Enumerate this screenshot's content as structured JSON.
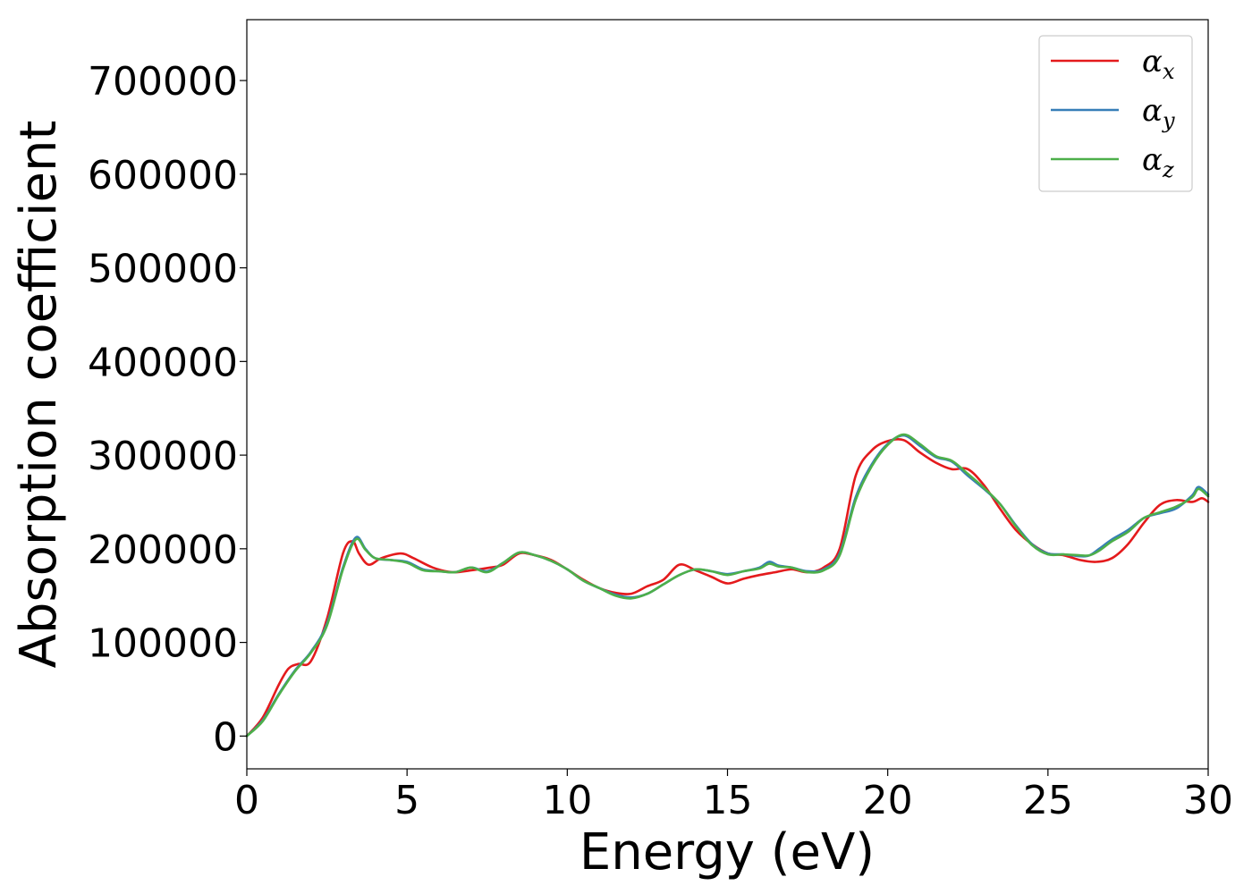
{
  "chart_data": {
    "type": "line",
    "title": "",
    "xlabel": "Energy (eV)",
    "ylabel": "Absorption coefficient",
    "xlim": [
      0,
      30
    ],
    "ylim": [
      -35000,
      765000
    ],
    "xticks": [
      0,
      5,
      10,
      15,
      20,
      25,
      30
    ],
    "yticks": [
      0,
      100000,
      200000,
      300000,
      400000,
      500000,
      600000,
      700000
    ],
    "grid": false,
    "legend_position": "top-right",
    "series": [
      {
        "name": "α",
        "name_sub": "x",
        "color": "#e41a1c",
        "x": [
          0,
          0.5,
          1.0,
          1.3,
          1.6,
          2.0,
          2.5,
          3.0,
          3.3,
          3.5,
          3.8,
          4.2,
          4.8,
          5.2,
          5.8,
          6.4,
          7.0,
          7.6,
          8.0,
          8.5,
          9.0,
          9.5,
          10.0,
          10.5,
          11.0,
          11.5,
          12.0,
          12.5,
          13.0,
          13.5,
          14.0,
          14.5,
          15.0,
          15.5,
          16.0,
          16.5,
          17.0,
          17.5,
          18.0,
          18.5,
          19.0,
          19.5,
          20.0,
          20.5,
          21.0,
          21.5,
          22.0,
          22.5,
          23.0,
          23.5,
          24.0,
          24.5,
          25.0,
          25.5,
          26.0,
          26.5,
          27.0,
          27.5,
          28.0,
          28.5,
          29.0,
          29.5,
          29.8,
          30.0
        ],
        "values": [
          0,
          20000,
          55000,
          72000,
          77000,
          80000,
          125000,
          195000,
          208000,
          195000,
          183000,
          190000,
          195000,
          190000,
          180000,
          175000,
          177000,
          180000,
          183000,
          195000,
          193000,
          188000,
          178000,
          167000,
          158000,
          153000,
          152000,
          160000,
          167000,
          183000,
          177000,
          170000,
          163000,
          168000,
          172000,
          175000,
          178000,
          175000,
          180000,
          200000,
          278000,
          305000,
          315000,
          316000,
          303000,
          292000,
          285000,
          285000,
          268000,
          243000,
          220000,
          205000,
          195000,
          193000,
          188000,
          186000,
          190000,
          205000,
          228000,
          247000,
          252000,
          250000,
          254000,
          250000
        ]
      },
      {
        "name": "α",
        "name_sub": "y",
        "color": "#377eb8",
        "x": [
          0,
          0.5,
          1.0,
          1.5,
          2.0,
          2.5,
          3.0,
          3.4,
          3.7,
          4.0,
          4.5,
          5.0,
          5.5,
          6.0,
          6.5,
          7.0,
          7.5,
          8.0,
          8.5,
          9.0,
          9.5,
          10.0,
          10.5,
          11.0,
          11.5,
          12.0,
          12.5,
          13.0,
          13.5,
          14.0,
          14.5,
          15.0,
          15.5,
          16.0,
          16.3,
          16.6,
          17.0,
          17.5,
          18.0,
          18.5,
          19.0,
          19.5,
          20.0,
          20.5,
          21.0,
          21.5,
          22.0,
          22.5,
          23.0,
          23.5,
          24.0,
          24.5,
          25.0,
          25.5,
          26.0,
          26.3,
          26.6,
          27.0,
          27.5,
          28.0,
          28.5,
          29.0,
          29.5,
          29.7,
          30.0
        ],
        "values": [
          0,
          17000,
          45000,
          70000,
          90000,
          120000,
          180000,
          212000,
          200000,
          190000,
          188000,
          186000,
          178000,
          176000,
          175000,
          180000,
          176000,
          185000,
          196000,
          193000,
          187000,
          178000,
          166000,
          158000,
          151000,
          148000,
          152000,
          162000,
          172000,
          178000,
          176000,
          173000,
          176000,
          180000,
          186000,
          182000,
          180000,
          176000,
          178000,
          195000,
          255000,
          290000,
          312000,
          321000,
          310000,
          298000,
          293000,
          278000,
          264000,
          248000,
          225000,
          205000,
          195000,
          194000,
          192000,
          193000,
          200000,
          210000,
          220000,
          233000,
          238000,
          243000,
          257000,
          266000,
          258000
        ]
      },
      {
        "name": "α",
        "name_sub": "z",
        "color": "#4daf4a",
        "x": [
          0,
          0.5,
          1.0,
          1.5,
          2.0,
          2.5,
          3.0,
          3.4,
          3.7,
          4.0,
          4.5,
          5.0,
          5.5,
          6.0,
          6.5,
          7.0,
          7.5,
          8.0,
          8.5,
          9.0,
          9.5,
          10.0,
          10.5,
          11.0,
          11.5,
          12.0,
          12.5,
          13.0,
          13.5,
          14.0,
          14.5,
          15.0,
          15.5,
          16.0,
          16.3,
          16.6,
          17.0,
          17.5,
          18.0,
          18.5,
          19.0,
          19.5,
          20.0,
          20.5,
          21.0,
          21.5,
          22.0,
          22.5,
          23.0,
          23.5,
          24.0,
          24.5,
          25.0,
          25.5,
          26.0,
          26.3,
          26.6,
          27.0,
          27.5,
          28.0,
          28.5,
          29.0,
          29.5,
          29.7,
          30.0
        ],
        "values": [
          0,
          16000,
          44000,
          69000,
          89000,
          118000,
          178000,
          210000,
          199000,
          190000,
          188000,
          185000,
          177000,
          176000,
          175000,
          180000,
          175000,
          185000,
          196000,
          193000,
          187000,
          178000,
          166000,
          158000,
          150000,
          147000,
          152000,
          162000,
          172000,
          178000,
          176000,
          172000,
          176000,
          179000,
          184000,
          181000,
          180000,
          175000,
          177000,
          193000,
          252000,
          288000,
          311000,
          322000,
          312000,
          299000,
          294000,
          280000,
          265000,
          248000,
          224000,
          204000,
          194000,
          194000,
          193000,
          193000,
          198000,
          208000,
          218000,
          233000,
          239000,
          245000,
          255000,
          264000,
          256000
        ]
      }
    ]
  }
}
